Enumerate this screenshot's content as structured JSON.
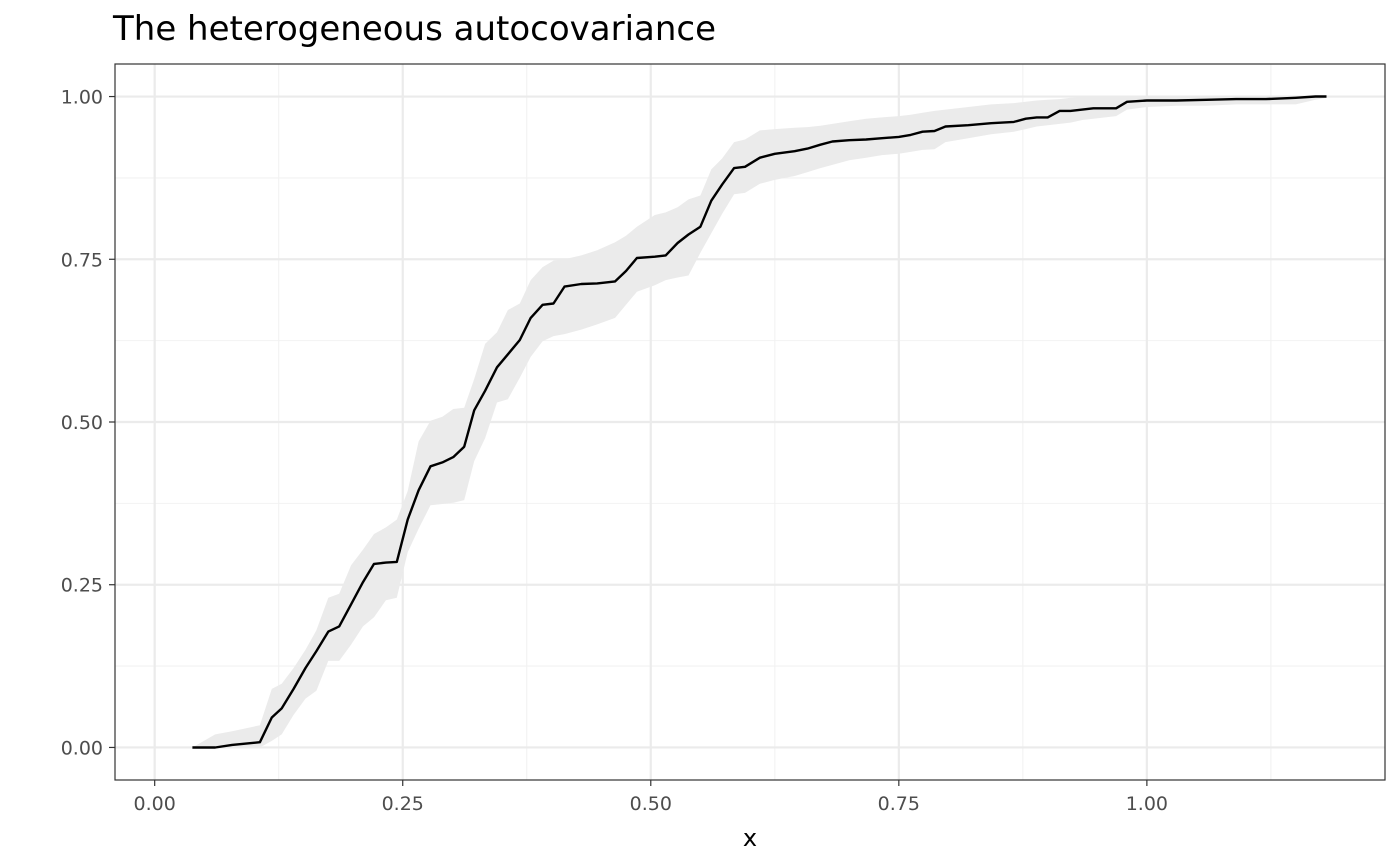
{
  "chart_data": {
    "type": "line",
    "title": "The heterogeneous autocovariance",
    "xlabel": "x",
    "ylabel": "",
    "xlim": [
      -0.04,
      1.24
    ],
    "ylim": [
      -0.05,
      1.05
    ],
    "x_ticks": [
      0,
      0.25,
      0.5,
      0.75,
      1.0
    ],
    "x_tick_labels": [
      "0.00",
      "0.25",
      "0.50",
      "0.75",
      "1.00"
    ],
    "y_ticks": [
      0,
      0.25,
      0.5,
      0.75,
      1.0
    ],
    "y_tick_labels": [
      "0.00",
      "0.25",
      "0.50",
      "0.75",
      "1.00"
    ],
    "grid": true,
    "legend": "none",
    "colors": {
      "line": "#000000",
      "ribbon": "#ebebeb",
      "grid_major": "#ebebeb",
      "grid_minor": "#f2f2f2",
      "panel_border": "#333333"
    },
    "series": [
      {
        "x": [
          0.038,
          0.061,
          0.078,
          0.106,
          0.118,
          0.128,
          0.14,
          0.152,
          0.163,
          0.175,
          0.186,
          0.198,
          0.21,
          0.221,
          0.233,
          0.244,
          0.255,
          0.266,
          0.278,
          0.29,
          0.301,
          0.312,
          0.322,
          0.333,
          0.345,
          0.356,
          0.368,
          0.379,
          0.391,
          0.402,
          0.413,
          0.43,
          0.446,
          0.464,
          0.475,
          0.486,
          0.504,
          0.515,
          0.527,
          0.538,
          0.55,
          0.561,
          0.572,
          0.584,
          0.595,
          0.61,
          0.625,
          0.645,
          0.658,
          0.671,
          0.683,
          0.7,
          0.717,
          0.733,
          0.75,
          0.762,
          0.774,
          0.786,
          0.797,
          0.82,
          0.843,
          0.866,
          0.878,
          0.889,
          0.9,
          0.912,
          0.923,
          0.935,
          0.946,
          0.969,
          0.98,
          1.0,
          1.03,
          1.06,
          1.09,
          1.12,
          1.15,
          1.17,
          1.181
        ],
        "y": [
          0.0,
          0.0,
          0.004,
          0.008,
          0.046,
          0.06,
          0.09,
          0.122,
          0.148,
          0.178,
          0.186,
          0.22,
          0.254,
          0.282,
          0.284,
          0.285,
          0.35,
          0.395,
          0.432,
          0.438,
          0.446,
          0.462,
          0.518,
          0.548,
          0.584,
          0.604,
          0.626,
          0.66,
          0.68,
          0.682,
          0.708,
          0.712,
          0.713,
          0.716,
          0.732,
          0.752,
          0.754,
          0.756,
          0.775,
          0.788,
          0.8,
          0.84,
          0.865,
          0.89,
          0.892,
          0.906,
          0.912,
          0.916,
          0.92,
          0.926,
          0.931,
          0.933,
          0.934,
          0.936,
          0.938,
          0.941,
          0.946,
          0.947,
          0.954,
          0.956,
          0.959,
          0.961,
          0.966,
          0.968,
          0.968,
          0.978,
          0.978,
          0.98,
          0.982,
          0.982,
          0.992,
          0.994,
          0.994,
          0.995,
          0.996,
          0.996,
          0.998,
          1.0,
          1.0
        ],
        "lower": [
          0.0,
          0.0,
          0.0,
          0.0,
          0.01,
          0.02,
          0.05,
          0.075,
          0.087,
          0.133,
          0.133,
          0.158,
          0.186,
          0.2,
          0.226,
          0.23,
          0.3,
          0.336,
          0.372,
          0.374,
          0.376,
          0.38,
          0.44,
          0.475,
          0.53,
          0.535,
          0.568,
          0.6,
          0.624,
          0.632,
          0.635,
          0.642,
          0.65,
          0.66,
          0.68,
          0.7,
          0.71,
          0.718,
          0.722,
          0.725,
          0.76,
          0.79,
          0.82,
          0.85,
          0.852,
          0.866,
          0.872,
          0.878,
          0.884,
          0.89,
          0.895,
          0.902,
          0.906,
          0.91,
          0.912,
          0.915,
          0.918,
          0.919,
          0.93,
          0.936,
          0.942,
          0.946,
          0.95,
          0.954,
          0.956,
          0.958,
          0.96,
          0.964,
          0.966,
          0.97,
          0.98,
          0.984,
          0.986,
          0.986,
          0.988,
          0.988,
          0.988,
          0.995,
          0.998
        ],
        "upper": [
          0.0,
          0.02,
          0.025,
          0.034,
          0.09,
          0.098,
          0.122,
          0.15,
          0.18,
          0.23,
          0.236,
          0.28,
          0.304,
          0.328,
          0.338,
          0.35,
          0.394,
          0.47,
          0.502,
          0.508,
          0.52,
          0.522,
          0.566,
          0.62,
          0.638,
          0.672,
          0.682,
          0.718,
          0.738,
          0.748,
          0.75,
          0.756,
          0.764,
          0.776,
          0.786,
          0.8,
          0.818,
          0.822,
          0.83,
          0.842,
          0.848,
          0.888,
          0.905,
          0.93,
          0.934,
          0.948,
          0.95,
          0.952,
          0.953,
          0.955,
          0.958,
          0.962,
          0.966,
          0.968,
          0.97,
          0.972,
          0.975,
          0.978,
          0.98,
          0.984,
          0.988,
          0.99,
          0.992,
          0.994,
          0.995,
          0.996,
          0.998,
          0.999,
          1.0,
          1.0,
          1.0,
          1.0,
          1.0,
          1.0,
          1.0,
          1.0,
          1.0,
          1.0,
          1.0
        ]
      }
    ]
  }
}
